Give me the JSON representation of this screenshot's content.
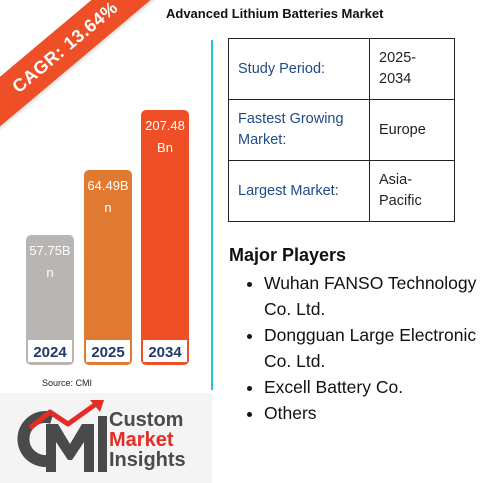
{
  "header": {
    "title": "Advanced Lithium Batteries Market",
    "cagr_badge": "CAGR: 13.64%"
  },
  "chart_data": {
    "type": "bar",
    "categories": [
      "2024",
      "2025",
      "2034"
    ],
    "values": [
      57.75,
      64.49,
      207.48
    ],
    "value_labels": [
      "57.75B n",
      "64.49B n",
      "207.48 Bn"
    ],
    "colors": [
      "#b8b5b2",
      "#e07a30",
      "#ee4f26"
    ]
  },
  "source": "Source: CMI",
  "info_table": {
    "rows": [
      {
        "key": "Study Period:",
        "value": "2025-2034"
      },
      {
        "key": "Fastest Growing Market:",
        "value": "Europe"
      },
      {
        "key": "Largest Market:",
        "value": "Asia-Pacific"
      }
    ]
  },
  "major_players": {
    "heading": "Major Players",
    "items": [
      "Wuhan FANSO Technology Co. Ltd.",
      "Dongguan Large Electronic Co. Ltd.",
      "Excell Battery Co.",
      "Others"
    ]
  },
  "logo": {
    "line1": "Custom",
    "line2": "Market",
    "line3": "Insights",
    "colors": {
      "grey": "#4a4a4a",
      "red": "#e52d27"
    }
  }
}
